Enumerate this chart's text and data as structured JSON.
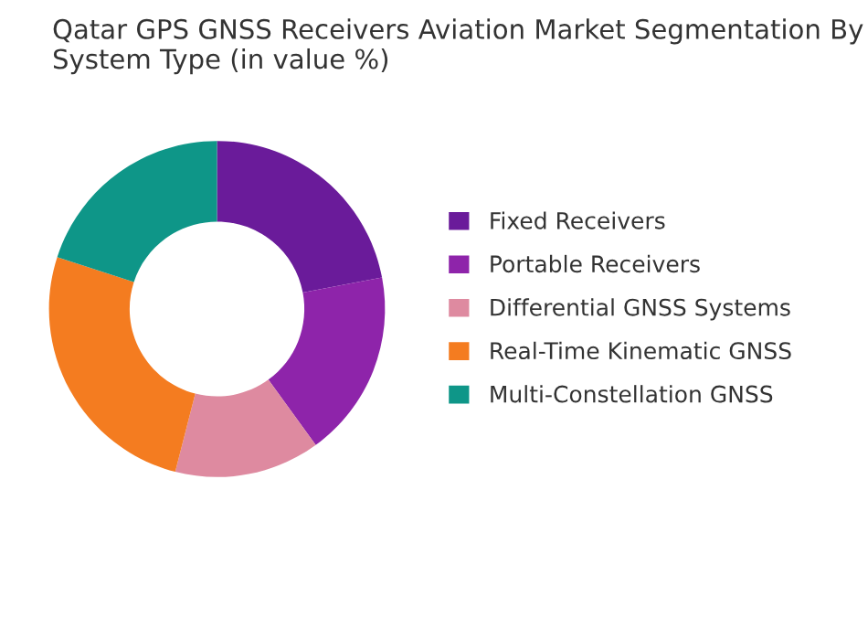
{
  "chart_data": {
    "type": "donut",
    "title": "Qatar GPS GNSS Receivers Aviation Market Segmentation By System Type (in value %)",
    "categories": [
      "Fixed Receivers",
      "Portable Receivers",
      "Differential GNSS Systems",
      "Real-Time Kinematic GNSS",
      "Multi-Constellation GNSS"
    ],
    "values": [
      22,
      18,
      14,
      26,
      20
    ],
    "colors": [
      "#6a1b9a",
      "#8e24aa",
      "#de8aa0",
      "#f47c20",
      "#0e9688"
    ],
    "legend": "right"
  }
}
